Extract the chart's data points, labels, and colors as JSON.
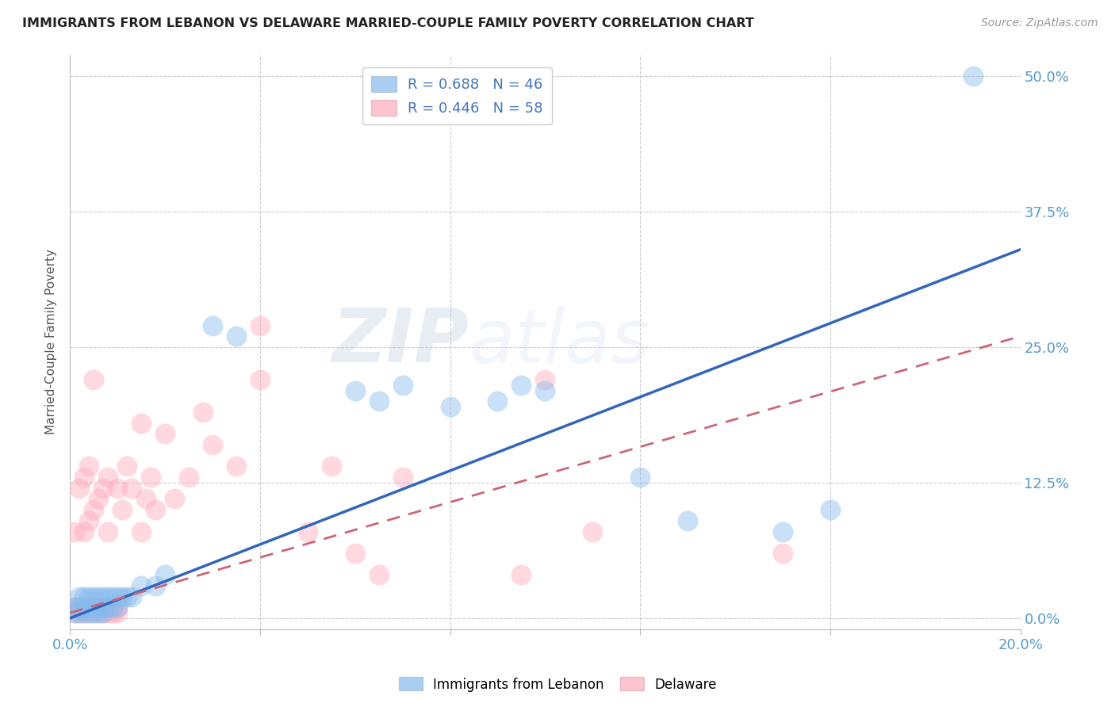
{
  "title": "IMMIGRANTS FROM LEBANON VS DELAWARE MARRIED-COUPLE FAMILY POVERTY CORRELATION CHART",
  "source": "Source: ZipAtlas.com",
  "ylabel": "Married-Couple Family Poverty",
  "ytick_labels": [
    "0.0%",
    "12.5%",
    "25.0%",
    "37.5%",
    "50.0%"
  ],
  "ytick_values": [
    0.0,
    0.125,
    0.25,
    0.375,
    0.5
  ],
  "xlim": [
    0.0,
    0.2
  ],
  "ylim": [
    -0.01,
    0.52
  ],
  "color_blue": "#88BBEE",
  "color_pink": "#FFAABB",
  "color_blue_line": "#3366BB",
  "color_pink_line": "#CC6677",
  "watermark_zip": "ZIP",
  "watermark_atlas": "atlas",
  "lebanon_points": [
    [
      0.001,
      0.005
    ],
    [
      0.001,
      0.01
    ],
    [
      0.002,
      0.005
    ],
    [
      0.002,
      0.01
    ],
    [
      0.002,
      0.02
    ],
    [
      0.003,
      0.005
    ],
    [
      0.003,
      0.01
    ],
    [
      0.003,
      0.02
    ],
    [
      0.004,
      0.005
    ],
    [
      0.004,
      0.01
    ],
    [
      0.004,
      0.02
    ],
    [
      0.005,
      0.005
    ],
    [
      0.005,
      0.01
    ],
    [
      0.005,
      0.02
    ],
    [
      0.006,
      0.005
    ],
    [
      0.006,
      0.01
    ],
    [
      0.006,
      0.02
    ],
    [
      0.007,
      0.005
    ],
    [
      0.007,
      0.01
    ],
    [
      0.007,
      0.02
    ],
    [
      0.008,
      0.01
    ],
    [
      0.008,
      0.02
    ],
    [
      0.009,
      0.01
    ],
    [
      0.009,
      0.02
    ],
    [
      0.01,
      0.01
    ],
    [
      0.01,
      0.02
    ],
    [
      0.011,
      0.02
    ],
    [
      0.012,
      0.02
    ],
    [
      0.013,
      0.02
    ],
    [
      0.015,
      0.03
    ],
    [
      0.018,
      0.03
    ],
    [
      0.02,
      0.04
    ],
    [
      0.03,
      0.27
    ],
    [
      0.035,
      0.26
    ],
    [
      0.06,
      0.21
    ],
    [
      0.065,
      0.2
    ],
    [
      0.07,
      0.215
    ],
    [
      0.08,
      0.195
    ],
    [
      0.09,
      0.2
    ],
    [
      0.095,
      0.215
    ],
    [
      0.1,
      0.21
    ],
    [
      0.12,
      0.13
    ],
    [
      0.13,
      0.09
    ],
    [
      0.15,
      0.08
    ],
    [
      0.16,
      0.1
    ],
    [
      0.19,
      0.5
    ]
  ],
  "delaware_points": [
    [
      0.001,
      0.005
    ],
    [
      0.001,
      0.01
    ],
    [
      0.001,
      0.08
    ],
    [
      0.002,
      0.005
    ],
    [
      0.002,
      0.01
    ],
    [
      0.002,
      0.12
    ],
    [
      0.003,
      0.005
    ],
    [
      0.003,
      0.01
    ],
    [
      0.003,
      0.08
    ],
    [
      0.003,
      0.13
    ],
    [
      0.004,
      0.005
    ],
    [
      0.004,
      0.01
    ],
    [
      0.004,
      0.09
    ],
    [
      0.004,
      0.14
    ],
    [
      0.005,
      0.005
    ],
    [
      0.005,
      0.01
    ],
    [
      0.005,
      0.1
    ],
    [
      0.005,
      0.22
    ],
    [
      0.006,
      0.005
    ],
    [
      0.006,
      0.01
    ],
    [
      0.006,
      0.11
    ],
    [
      0.007,
      0.005
    ],
    [
      0.007,
      0.01
    ],
    [
      0.007,
      0.12
    ],
    [
      0.008,
      0.005
    ],
    [
      0.008,
      0.01
    ],
    [
      0.008,
      0.08
    ],
    [
      0.008,
      0.13
    ],
    [
      0.009,
      0.005
    ],
    [
      0.009,
      0.01
    ],
    [
      0.01,
      0.005
    ],
    [
      0.01,
      0.01
    ],
    [
      0.01,
      0.12
    ],
    [
      0.011,
      0.1
    ],
    [
      0.012,
      0.14
    ],
    [
      0.013,
      0.12
    ],
    [
      0.015,
      0.08
    ],
    [
      0.015,
      0.18
    ],
    [
      0.016,
      0.11
    ],
    [
      0.017,
      0.13
    ],
    [
      0.018,
      0.1
    ],
    [
      0.02,
      0.17
    ],
    [
      0.022,
      0.11
    ],
    [
      0.025,
      0.13
    ],
    [
      0.028,
      0.19
    ],
    [
      0.03,
      0.16
    ],
    [
      0.035,
      0.14
    ],
    [
      0.04,
      0.22
    ],
    [
      0.04,
      0.27
    ],
    [
      0.05,
      0.08
    ],
    [
      0.055,
      0.14
    ],
    [
      0.06,
      0.06
    ],
    [
      0.065,
      0.04
    ],
    [
      0.07,
      0.13
    ],
    [
      0.095,
      0.04
    ],
    [
      0.1,
      0.22
    ],
    [
      0.11,
      0.08
    ],
    [
      0.15,
      0.06
    ]
  ]
}
